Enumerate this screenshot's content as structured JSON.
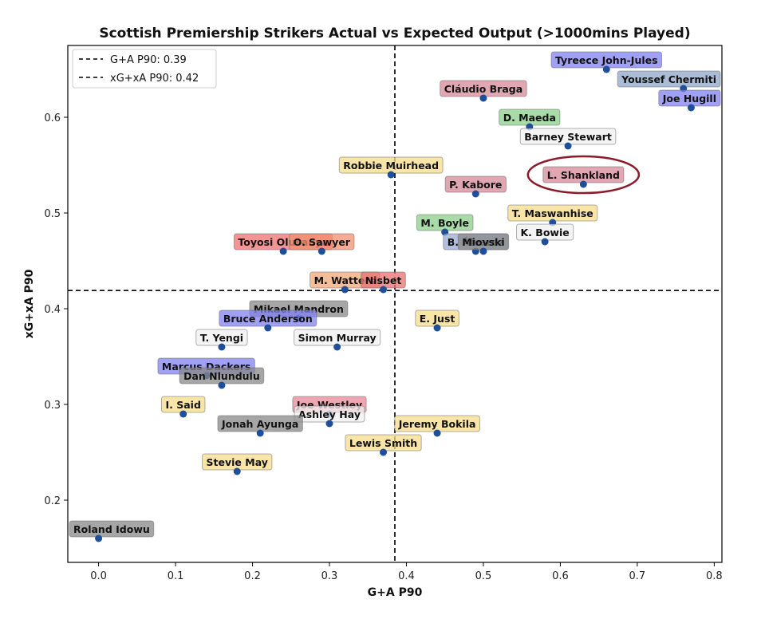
{
  "chart_data": {
    "type": "scatter",
    "title": "Scottish Premiership Strikers Actual vs Expected Output (>1000mins Played)",
    "xlabel": "G+A P90",
    "ylabel": "xG+xA P90",
    "xlim": [
      -0.04,
      0.81
    ],
    "ylim": [
      0.135,
      0.675
    ],
    "xticks": [
      "0.0",
      "0.1",
      "0.2",
      "0.3",
      "0.4",
      "0.5",
      "0.6",
      "0.7",
      "0.8"
    ],
    "yticks": [
      "0.2",
      "0.3",
      "0.4",
      "0.5",
      "0.6"
    ],
    "grid": false,
    "legend_position": "top-left",
    "reference_lines": [
      {
        "label": "G+A P90: 0.39",
        "axis": "x",
        "value": 0.385
      },
      {
        "label": "xG+xA P90: 0.42",
        "axis": "y",
        "value": 0.419
      }
    ],
    "highlight": "L. Shankland",
    "highlight_color": "#8b1a2b",
    "point_color": "#1f4e9a",
    "points": [
      {
        "name": "Tyreece John-Jules",
        "x": 0.66,
        "y": 0.65,
        "color": "#8080f0"
      },
      {
        "name": "Youssef Chermiti",
        "x": 0.76,
        "y": 0.63,
        "color": "#8fa6c8"
      },
      {
        "name": "Joe Hugill",
        "x": 0.77,
        "y": 0.61,
        "color": "#8080f0"
      },
      {
        "name": "Cláudio Braga",
        "x": 0.5,
        "y": 0.62,
        "color": "#d68a98"
      },
      {
        "name": "D. Maeda",
        "x": 0.56,
        "y": 0.59,
        "color": "#8ccf8c"
      },
      {
        "name": "Barney Stewart",
        "x": 0.61,
        "y": 0.57,
        "color": "#f0f0f0"
      },
      {
        "name": "Robbie Muirhead",
        "x": 0.38,
        "y": 0.54,
        "color": "#f5dc8a"
      },
      {
        "name": "L. Shankland",
        "x": 0.63,
        "y": 0.53,
        "color": "#d68a98"
      },
      {
        "name": "P. Kabore",
        "x": 0.49,
        "y": 0.52,
        "color": "#d68a98"
      },
      {
        "name": "T. Maswanhise",
        "x": 0.59,
        "y": 0.49,
        "color": "#f5dc8a"
      },
      {
        "name": "M. Boyle",
        "x": 0.45,
        "y": 0.48,
        "color": "#8ccf8c"
      },
      {
        "name": "K. Bowie",
        "x": 0.58,
        "y": 0.47,
        "color": "#f0f0f0"
      },
      {
        "name": "B. Álvarez",
        "x": 0.49,
        "y": 0.46,
        "color": "#9aaad0"
      },
      {
        "name": "Miovski",
        "x": 0.5,
        "y": 0.46,
        "color": "#888888"
      },
      {
        "name": "Toyosi Olusanya",
        "x": 0.24,
        "y": 0.46,
        "color": "#f07070"
      },
      {
        "name": "O. Sawyer",
        "x": 0.29,
        "y": 0.46,
        "color": "#f09070"
      },
      {
        "name": "M. Watters",
        "x": 0.32,
        "y": 0.42,
        "color": "#f0a878"
      },
      {
        "name": "Nisbet",
        "x": 0.37,
        "y": 0.42,
        "color": "#e87070"
      },
      {
        "name": "Mikael Mandron",
        "x": 0.26,
        "y": 0.39,
        "color": "#888888"
      },
      {
        "name": "Bruce Anderson",
        "x": 0.22,
        "y": 0.38,
        "color": "#8080f0"
      },
      {
        "name": "E. Just",
        "x": 0.44,
        "y": 0.38,
        "color": "#f5dc8a"
      },
      {
        "name": "T. Yengi",
        "x": 0.16,
        "y": 0.36,
        "color": "#f0f0f0"
      },
      {
        "name": "Simon Murray",
        "x": 0.31,
        "y": 0.36,
        "color": "#f0f0f0"
      },
      {
        "name": "Marcus Dackers",
        "x": 0.14,
        "y": 0.33,
        "color": "#8080f0"
      },
      {
        "name": "Dan Nlundulu",
        "x": 0.16,
        "y": 0.32,
        "color": "#888888"
      },
      {
        "name": "I. Said",
        "x": 0.11,
        "y": 0.29,
        "color": "#f5dc8a"
      },
      {
        "name": "Joe Westley",
        "x": 0.3,
        "y": 0.29,
        "color": "#e88a98"
      },
      {
        "name": "Ashley Hay",
        "x": 0.3,
        "y": 0.28,
        "color": "#f0f0f0"
      },
      {
        "name": "Jonah Ayunga",
        "x": 0.21,
        "y": 0.27,
        "color": "#888888"
      },
      {
        "name": "Jeremy Bokila",
        "x": 0.44,
        "y": 0.27,
        "color": "#f5dc8a"
      },
      {
        "name": "Lewis Smith",
        "x": 0.37,
        "y": 0.25,
        "color": "#f5dc8a"
      },
      {
        "name": "Stevie May",
        "x": 0.18,
        "y": 0.23,
        "color": "#f5dc8a"
      },
      {
        "name": "Roland Idowu",
        "x": 0.0,
        "y": 0.16,
        "color": "#888888"
      }
    ]
  }
}
